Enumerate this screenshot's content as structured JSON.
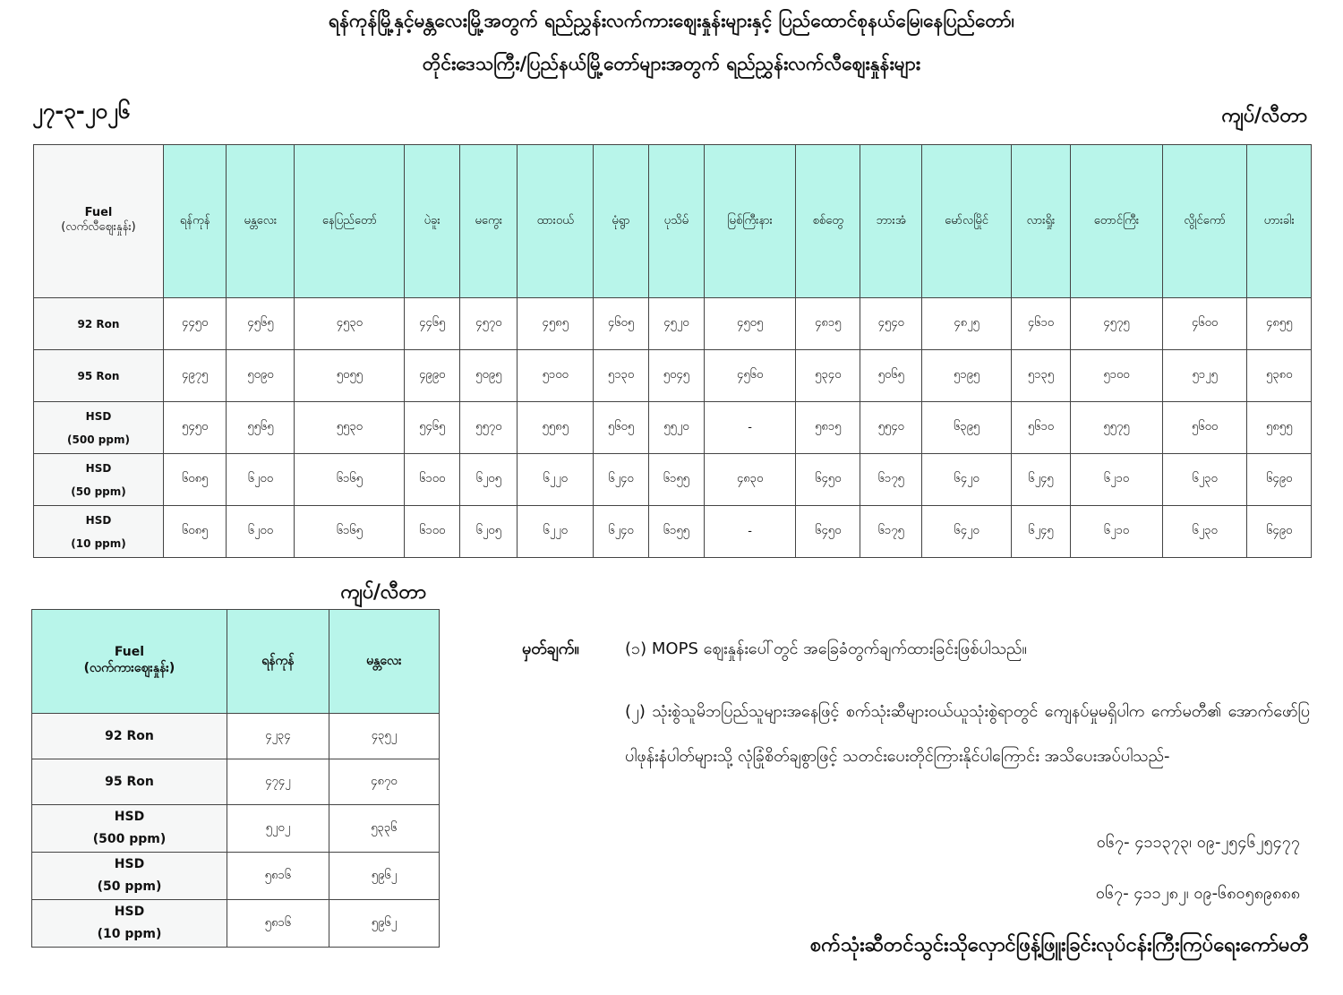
{
  "title_line1": "ရန်ကုန်မြို့နှင့်မန္တလေးမြို့အတွက် ရည်ညွှန်းလက်ကားဈေးနှုန်းများနှင့် ပြည်ထောင်စုနယ်မြေ၊နေပြည်တော်၊",
  "title_line2": "တိုင်းဒေသကြီး/ပြည်နယ်မြို့တော်များအတွက် ရည်ညွှန်းလက်လီဈေးနှုန်းများ",
  "date": "၂၇-၃-၂၀၂၆",
  "unit": "ကျပ်/လီတာ",
  "main_table": {
    "fuel_header": "Fuel",
    "fuel_subheader": "(လက်လီဈေးနှုန်း)",
    "cities": [
      "ရန်ကုန်",
      "မန္တလေး",
      "နေပြည်တော်",
      "ပဲခူး",
      "မကွေး",
      "ထားဝယ်",
      "မုံရွာ",
      "ပုသိမ်",
      "မြစ်ကြီးနား",
      "စစ်တွေ",
      "ဘားအံ",
      "မော်လမြိုင်",
      "လားရှိုး",
      "တောင်ကြီး",
      "လွိုင်ကော်",
      "ဟားခါး"
    ],
    "rows": [
      {
        "fuel": [
          "92 Ron"
        ],
        "values": [
          "၄၄၅၀",
          "၄၅၆၅",
          "၄၅၃၀",
          "၄၄၆၅",
          "၄၅၇၀",
          "၄၅၈၅",
          "၄၆၀၅",
          "၄၅၂၀",
          "၄၅၀၅",
          "၄၈၁၅",
          "၄၅၄၀",
          "၄၈၂၅",
          "၄၆၁၀",
          "၄၅၇၅",
          "၄၆၀၀",
          "၄၈၅၅"
        ]
      },
      {
        "fuel": [
          "95 Ron"
        ],
        "values": [
          "၄၉၇၅",
          "၅၀၉၀",
          "၅၀၅၅",
          "၄၉၉၀",
          "၅၀၉၅",
          "၅၁၀၀",
          "၅၁၃၀",
          "၅၀၄၅",
          "၄၅၆၀",
          "၅၃၄၀",
          "၅၀၆၅",
          "၅၁၉၅",
          "၅၁၃၅",
          "၅၁၀၀",
          "၅၁၂၅",
          "၅၃၈၀"
        ]
      },
      {
        "fuel": [
          "HSD",
          "(500 ppm)"
        ],
        "values": [
          "၅၄၅၀",
          "၅၅၆၅",
          "၅၅၃၀",
          "၅၄၆၅",
          "၅၅၇၀",
          "၅၅၈၅",
          "၅၆၀၅",
          "၅၅၂၀",
          "-",
          "၅၈၁၅",
          "၅၅၄၀",
          "၆၃၉၅",
          "၅၆၁၀",
          "၅၅၇၅",
          "၅၆၀၀",
          "၅၈၅၅"
        ]
      },
      {
        "fuel": [
          "HSD",
          "(50 ppm)"
        ],
        "values": [
          "၆၀၈၅",
          "၆၂၀၀",
          "၆၁၆၅",
          "၆၁၀၀",
          "၆၂၀၅",
          "၆၂၂၀",
          "၆၂၄၀",
          "၆၁၅၅",
          "၄၈၃၀",
          "၆၄၅၀",
          "၆၁၇၅",
          "၆၄၂၀",
          "၆၂၄၅",
          "၆၂၁၀",
          "၆၂၃၀",
          "၆၄၉၀"
        ]
      },
      {
        "fuel": [
          "HSD",
          "(10 ppm)"
        ],
        "values": [
          "၆၀၈၅",
          "၆၂၀၀",
          "၆၁၆၅",
          "၆၁၀၀",
          "၆၂၀၅",
          "၆၂၂၀",
          "၆၂၄၀",
          "၆၁၅၅",
          "-",
          "၆၄၅၀",
          "၆၁၇၅",
          "၆၄၂၀",
          "၆၂၄၅",
          "၆၂၁၀",
          "၆၂၃၀",
          "၆၄၉၀"
        ]
      }
    ]
  },
  "small_table": {
    "fuel_header": "Fuel",
    "fuel_subheader": "(လက်ကားဈေးနှုန်း)",
    "cities": [
      "ရန်ကုန်",
      "မန္တလေး"
    ],
    "rows": [
      {
        "fuel": [
          "92 Ron"
        ],
        "values": [
          "၄၂၃၄",
          "၄၃၅၂"
        ]
      },
      {
        "fuel": [
          "95 Ron"
        ],
        "values": [
          "၄၇၄၂",
          "၄၈၇၀"
        ]
      },
      {
        "fuel": [
          "HSD",
          "(500 ppm)"
        ],
        "values": [
          "၅၂၀၂",
          "၅၃၃၆"
        ]
      },
      {
        "fuel": [
          "HSD",
          "(50 ppm)"
        ],
        "values": [
          "၅၈၁၆",
          "၅၉၆၂"
        ]
      },
      {
        "fuel": [
          "HSD",
          "(10 ppm)"
        ],
        "values": [
          "၅၈၁၆",
          "၅၉၆၂"
        ]
      }
    ]
  },
  "notes": {
    "label": "မှတ်ချက်။",
    "n1": "(၁)  MOPS ဈေးနှုန်းပေါ်တွင် အခြေခံတွက်ချက်ထားခြင်းဖြစ်ပါသည်။",
    "n2": "(၂)  သုံးစွဲသူမိဘပြည်သူများအနေဖြင့် စက်သုံးဆီများဝယ်ယူသုံးစွဲရာတွင် ကျေနပ်မှုမရှိပါက ကော်မတီ၏ အောက်ဖော်ပြပါဖုန်းနံပါတ်များသို့ လုံခြုံစိတ်ချစွာဖြင့် သတင်းပေးတိုင်ကြားနိုင်ပါကြောင်း အသိပေးအပ်ပါသည်-",
    "phone1": "၀၆၇- ၄၁၁၃၇၃၊ ၀၉-၂၅၄၆၂၅၄၇၇",
    "phone2": "၀၆၇- ၄၁၁၂၈၂၊ ၀၉-၆၈၀၅၈၉၈၈၈"
  },
  "signature": "စက်သုံးဆီတင်သွင်းသိုလှောင်ဖြန့်ဖြူးခြင်းလုပ်ငန်းကြီးကြပ်ရေးကော်မတီ"
}
